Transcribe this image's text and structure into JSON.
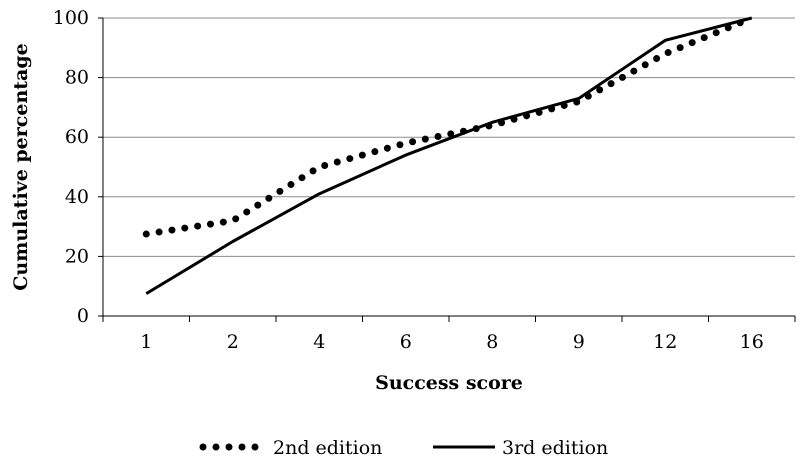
{
  "chart_data": {
    "type": "line",
    "categories": [
      "1",
      "2",
      "4",
      "6",
      "8",
      "9",
      "12",
      "16"
    ],
    "series": [
      {
        "name": "2nd edition",
        "values": [
          27.5,
          32,
          50,
          58,
          64,
          72,
          88,
          100
        ],
        "style": "dotted",
        "color": "#000000"
      },
      {
        "name": "3rd edition",
        "values": [
          7.5,
          25,
          41,
          54,
          65,
          73,
          92.5,
          100
        ],
        "style": "solid",
        "color": "#000000"
      }
    ],
    "xlabel": "Success score",
    "ylabel": "Cumulative percentage",
    "ylim": [
      0,
      100
    ],
    "yticks": [
      "0",
      "20",
      "40",
      "60",
      "80",
      "100"
    ],
    "grid": "horizontal",
    "legend_position": "bottom"
  }
}
